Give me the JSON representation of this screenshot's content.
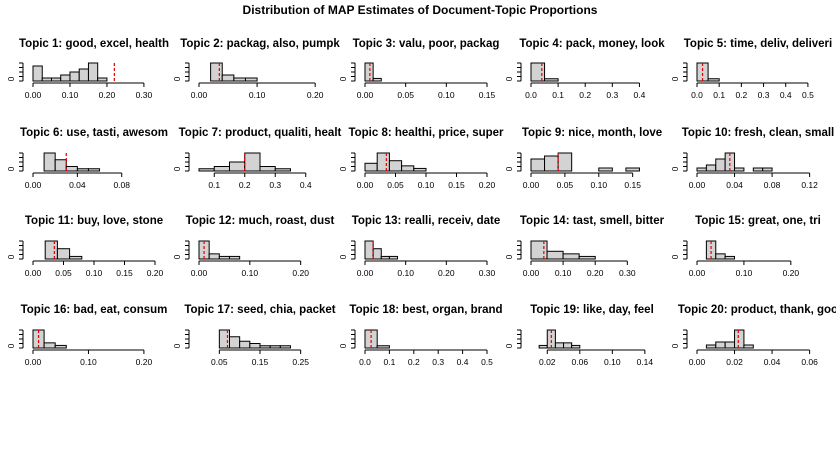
{
  "chart_data": {
    "type": "histogram-grid",
    "title": "Distribution of MAP Estimates of Document-Topic Proportions",
    "y_tick_label": "0",
    "panels": [
      {
        "title": "Topic 1: good, excel, health",
        "bin_start": 0.0,
        "bin_width": 0.025,
        "counts": [
          5,
          1,
          1,
          2,
          3,
          4,
          6,
          1
        ],
        "marker": 0.22,
        "xticks": [
          0.0,
          0.1,
          0.2,
          0.3
        ],
        "xtick_labels": [
          "0.00",
          "0.10",
          "0.20",
          "0.30"
        ],
        "xlim": [
          0.0,
          0.33
        ]
      },
      {
        "title": "Topic 2: packag, also, pumpk",
        "bin_start": 0.02,
        "bin_width": 0.02,
        "counts": [
          6,
          2,
          1,
          1,
          0,
          0,
          0,
          0,
          0,
          0
        ],
        "marker": 0.035,
        "xticks": [
          0.0,
          0.1,
          0.2
        ],
        "xtick_labels": [
          "0.00",
          "0.10",
          "0.20"
        ],
        "xlim": [
          0.0,
          0.21
        ]
      },
      {
        "title": "Topic 3: valu, poor, packag",
        "bin_start": 0.0,
        "bin_width": 0.01,
        "counts": [
          7,
          1,
          0,
          0,
          0,
          0,
          0,
          0,
          0,
          0,
          0,
          0,
          0,
          0,
          0
        ],
        "marker": 0.006,
        "xticks": [
          0.0,
          0.05,
          0.1,
          0.15
        ],
        "xtick_labels": [
          "0.00",
          "0.05",
          "0.10",
          "0.15"
        ],
        "xlim": [
          0.0,
          0.15
        ]
      },
      {
        "title": "Topic 4: pack, money, look",
        "bin_start": 0.0,
        "bin_width": 0.05,
        "counts": [
          8,
          1,
          0,
          0,
          0,
          0,
          0,
          0,
          0
        ],
        "marker": 0.04,
        "xticks": [
          0.0,
          0.1,
          0.2,
          0.3,
          0.4
        ],
        "xtick_labels": [
          "0.0",
          "0.1",
          "0.2",
          "0.3",
          "0.4"
        ],
        "xlim": [
          0.0,
          0.45
        ]
      },
      {
        "title": "Topic 5: time, deliv, deliveri",
        "bin_start": 0.0,
        "bin_width": 0.05,
        "counts": [
          8,
          1,
          0,
          0,
          0,
          0,
          0,
          0,
          0,
          0,
          0
        ],
        "marker": 0.025,
        "xticks": [
          0.0,
          0.1,
          0.2,
          0.3,
          0.4,
          0.5
        ],
        "xtick_labels": [
          "0.0",
          "0.1",
          "0.2",
          "0.3",
          "0.4",
          "0.5"
        ],
        "xlim": [
          0.0,
          0.55
        ]
      },
      {
        "title": "Topic 6: use, tasti, awesom",
        "bin_start": 0.01,
        "bin_width": 0.01,
        "counts": [
          8,
          5,
          2,
          1,
          1,
          0,
          0,
          0,
          0,
          0,
          0
        ],
        "marker": 0.03,
        "xticks": [
          0.0,
          0.04,
          0.08
        ],
        "xtick_labels": [
          "0.00",
          "0.04",
          "0.08"
        ],
        "xlim": [
          0.0,
          0.11
        ]
      },
      {
        "title": "Topic 7: product, qualiti, healt",
        "bin_start": 0.05,
        "bin_width": 0.05,
        "counts": [
          1,
          2,
          4,
          8,
          2,
          1,
          0,
          0
        ],
        "marker": 0.2,
        "xticks": [
          0.1,
          0.2,
          0.3,
          0.4
        ],
        "xtick_labels": [
          "0.1",
          "0.2",
          "0.3",
          "0.4"
        ],
        "xlim": [
          0.05,
          0.45
        ]
      },
      {
        "title": "Topic 8: healthi, price, super",
        "bin_start": 0.0,
        "bin_width": 0.02,
        "counts": [
          3,
          7,
          4,
          2,
          1,
          0,
          0,
          0,
          0,
          0
        ],
        "marker": 0.035,
        "xticks": [
          0.0,
          0.05,
          0.1,
          0.15,
          0.2
        ],
        "xtick_labels": [
          "0.00",
          "0.05",
          "0.10",
          "0.15",
          "0.20"
        ],
        "xlim": [
          0.0,
          0.2
        ]
      },
      {
        "title": "Topic 9: nice, month, love",
        "bin_start": 0.0,
        "bin_width": 0.02,
        "counts": [
          4,
          5,
          6,
          0,
          0,
          1,
          0,
          1,
          0
        ],
        "marker": 0.04,
        "xticks": [
          0.0,
          0.05,
          0.1,
          0.15
        ],
        "xtick_labels": [
          "0.00",
          "0.05",
          "0.10",
          "0.15"
        ],
        "xlim": [
          0.0,
          0.18
        ]
      },
      {
        "title": "Topic 10: fresh, clean, small",
        "bin_start": 0.0,
        "bin_width": 0.01,
        "counts": [
          1,
          2,
          4,
          6,
          1,
          0,
          1,
          1,
          0,
          0,
          0,
          0,
          0
        ],
        "marker": 0.035,
        "xticks": [
          0.0,
          0.04,
          0.08,
          0.12
        ],
        "xtick_labels": [
          "0.00",
          "0.04",
          "0.08",
          "0.12"
        ],
        "xlim": [
          0.0,
          0.13
        ]
      },
      {
        "title": "Topic 11: buy, love, stone",
        "bin_start": 0.02,
        "bin_width": 0.02,
        "counts": [
          7,
          4,
          1,
          0,
          0,
          0,
          0,
          0,
          0
        ],
        "marker": 0.035,
        "xticks": [
          0.0,
          0.05,
          0.1,
          0.15,
          0.2
        ],
        "xtick_labels": [
          "0.00",
          "0.05",
          "0.10",
          "0.15",
          "0.20"
        ],
        "xlim": [
          0.0,
          0.2
        ]
      },
      {
        "title": "Topic 12: much, roast, dust",
        "bin_start": 0.0,
        "bin_width": 0.02,
        "counts": [
          7,
          2,
          1,
          1,
          0,
          0,
          0,
          0,
          0,
          0,
          0,
          0
        ],
        "marker": 0.01,
        "xticks": [
          0.0,
          0.1,
          0.2
        ],
        "xtick_labels": [
          "0.00",
          "0.10",
          "0.20"
        ],
        "xlim": [
          0.0,
          0.24
        ]
      },
      {
        "title": "Topic 13: realli, receiv, date",
        "bin_start": 0.0,
        "bin_width": 0.02,
        "counts": [
          7,
          4,
          1,
          1,
          0,
          0,
          0,
          0,
          0,
          0,
          0,
          0,
          0,
          0,
          0
        ],
        "marker": 0.02,
        "xticks": [
          0.0,
          0.1,
          0.2,
          0.3
        ],
        "xtick_labels": [
          "0.00",
          "0.10",
          "0.20",
          "0.30"
        ],
        "xlim": [
          0.0,
          0.3
        ]
      },
      {
        "title": "Topic 14: tast, smell, bitter",
        "bin_start": 0.0,
        "bin_width": 0.05,
        "counts": [
          7,
          3,
          2,
          1,
          0,
          0,
          0,
          0
        ],
        "marker": 0.04,
        "xticks": [
          0.0,
          0.1,
          0.2,
          0.3
        ],
        "xtick_labels": [
          "0.00",
          "0.10",
          "0.20",
          "0.30"
        ],
        "xlim": [
          0.0,
          0.38
        ]
      },
      {
        "title": "Topic 15: great, one, tri",
        "bin_start": 0.02,
        "bin_width": 0.02,
        "counts": [
          7,
          2,
          1,
          0,
          0,
          0,
          0,
          0,
          0,
          0,
          0,
          0
        ],
        "marker": 0.03,
        "xticks": [
          0.0,
          0.1,
          0.2
        ],
        "xtick_labels": [
          "0.00",
          "0.10",
          "0.20"
        ],
        "xlim": [
          0.0,
          0.26
        ]
      },
      {
        "title": "Topic 16: bad, eat, consum",
        "bin_start": 0.0,
        "bin_width": 0.02,
        "counts": [
          7,
          2,
          1,
          0,
          0,
          0,
          0,
          0,
          0,
          0,
          0
        ],
        "marker": 0.01,
        "xticks": [
          0.0,
          0.1,
          0.2
        ],
        "xtick_labels": [
          "0.00",
          "0.10",
          "0.20"
        ],
        "xlim": [
          0.0,
          0.22
        ]
      },
      {
        "title": "Topic 17: seed, chia, packet",
        "bin_start": 0.05,
        "bin_width": 0.025,
        "counts": [
          8,
          5,
          3,
          2,
          1,
          1,
          1,
          0,
          0,
          0
        ],
        "marker": 0.07,
        "xticks": [
          0.05,
          0.15,
          0.25
        ],
        "xtick_labels": [
          "0.05",
          "0.15",
          "0.25"
        ],
        "xlim": [
          0.0,
          0.3
        ]
      },
      {
        "title": "Topic 18: best, organ, brand",
        "bin_start": 0.0,
        "bin_width": 0.05,
        "counts": [
          8,
          1,
          0,
          0,
          0,
          0,
          0,
          0,
          0,
          0
        ],
        "marker": 0.025,
        "xticks": [
          0.0,
          0.1,
          0.2,
          0.3,
          0.4,
          0.5
        ],
        "xtick_labels": [
          "0.0",
          "0.1",
          "0.2",
          "0.3",
          "0.4",
          "0.5"
        ],
        "xlim": [
          0.0,
          0.5
        ]
      },
      {
        "title": "Topic 19: like, day, feel",
        "bin_start": 0.01,
        "bin_width": 0.01,
        "counts": [
          1,
          7,
          2,
          2,
          1,
          0,
          0,
          0,
          0,
          0,
          0,
          0,
          0,
          0
        ],
        "marker": 0.025,
        "xticks": [
          0.02,
          0.06,
          0.1,
          0.14
        ],
        "xtick_labels": [
          "0.02",
          "0.06",
          "0.10",
          "0.14"
        ],
        "xlim": [
          0.0,
          0.15
        ]
      },
      {
        "title": "Topic 20: product, thank, goo",
        "bin_start": 0.0,
        "bin_width": 0.005,
        "counts": [
          0,
          1,
          2,
          2,
          6,
          1,
          0,
          0,
          0,
          0,
          0,
          0,
          0
        ],
        "marker": 0.022,
        "xticks": [
          0.0,
          0.02,
          0.04,
          0.06
        ],
        "xtick_labels": [
          "0.00",
          "0.02",
          "0.04",
          "0.06"
        ],
        "xlim": [
          0.0,
          0.065
        ]
      }
    ]
  }
}
